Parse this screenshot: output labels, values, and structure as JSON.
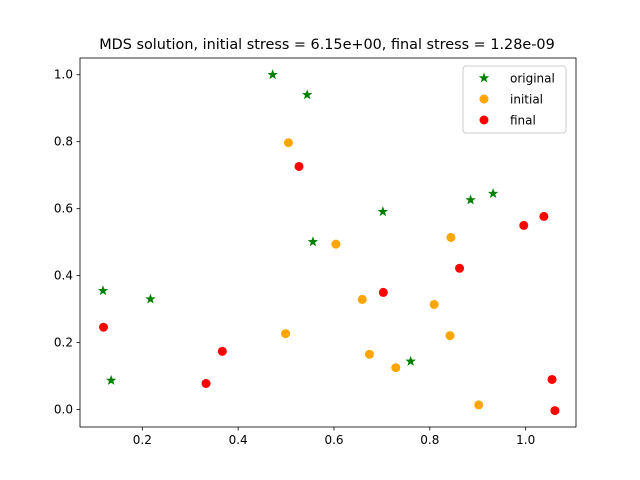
{
  "chart_data": {
    "type": "scatter",
    "title": "MDS solution, initial stress = 6.15e+00, final stress = 1.28e-09",
    "xlabel": "",
    "ylabel": "",
    "xlim": [
      0.07,
      1.105
    ],
    "ylim": [
      -0.052,
      1.05
    ],
    "xticks": [
      "0.2",
      "0.4",
      "0.6",
      "0.8",
      "1.0"
    ],
    "yticks": [
      "0.0",
      "0.2",
      "0.4",
      "0.6",
      "0.8",
      "1.0"
    ],
    "grid": false,
    "legend": "top-right",
    "series": [
      {
        "name": "original",
        "color": "#008000",
        "marker": "star",
        "points": [
          [
            0.472,
            1.0
          ],
          [
            0.544,
            0.94
          ],
          [
            0.118,
            0.355
          ],
          [
            0.217,
            0.33
          ],
          [
            0.135,
            0.087
          ],
          [
            0.556,
            0.501
          ],
          [
            0.702,
            0.591
          ],
          [
            0.76,
            0.144
          ],
          [
            0.885,
            0.626
          ],
          [
            0.932,
            0.645
          ]
        ]
      },
      {
        "name": "initial",
        "color": "#ffa500",
        "marker": "circle",
        "points": [
          [
            0.505,
            0.797
          ],
          [
            0.604,
            0.494
          ],
          [
            0.659,
            0.329
          ],
          [
            0.499,
            0.227
          ],
          [
            0.674,
            0.165
          ],
          [
            0.729,
            0.125
          ],
          [
            0.809,
            0.314
          ],
          [
            0.844,
            0.514
          ],
          [
            0.842,
            0.221
          ],
          [
            0.902,
            0.014
          ]
        ]
      },
      {
        "name": "final",
        "color": "#ff0000",
        "marker": "circle",
        "points": [
          [
            0.527,
            0.726
          ],
          [
            0.119,
            0.246
          ],
          [
            0.367,
            0.174
          ],
          [
            0.333,
            0.078
          ],
          [
            0.703,
            0.35
          ],
          [
            0.862,
            0.422
          ],
          [
            0.996,
            0.55
          ],
          [
            1.038,
            0.577
          ],
          [
            1.055,
            0.09
          ],
          [
            1.061,
            -0.003
          ]
        ]
      }
    ]
  }
}
